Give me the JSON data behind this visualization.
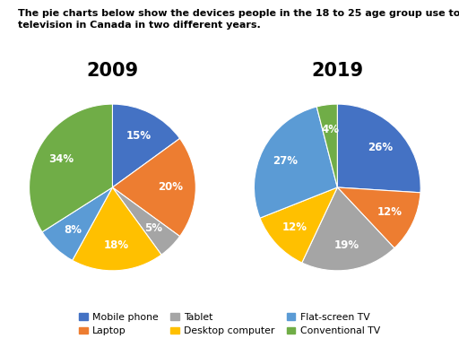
{
  "title_text": "The pie charts below show the devices people in the 18 to 25 age group use to watch\ntelevision in Canada in two different years.",
  "year_2009": {
    "title": "2009",
    "values": [
      15,
      20,
      5,
      18,
      8,
      34
    ],
    "colors": [
      "#4472C4",
      "#ED7D31",
      "#A5A5A5",
      "#FFC000",
      "#5B9BD5",
      "#70AD47"
    ],
    "startangle": 90
  },
  "year_2019": {
    "title": "2019",
    "values": [
      26,
      12,
      19,
      12,
      27,
      4
    ],
    "colors": [
      "#4472C4",
      "#ED7D31",
      "#A5A5A5",
      "#FFC000",
      "#5B9BD5",
      "#70AD47"
    ],
    "startangle": 90
  },
  "legend_labels": [
    "Mobile phone",
    "Laptop",
    "Tablet",
    "Desktop computer",
    "Flat-screen TV",
    "Conventional TV"
  ],
  "legend_colors": [
    "#4472C4",
    "#ED7D31",
    "#A5A5A5",
    "#FFC000",
    "#5B9BD5",
    "#70AD47"
  ],
  "background_color": "#FFFFFF",
  "title_fontsize": 8.0,
  "pie_title_fontsize": 15,
  "label_fontsize": 8.5
}
